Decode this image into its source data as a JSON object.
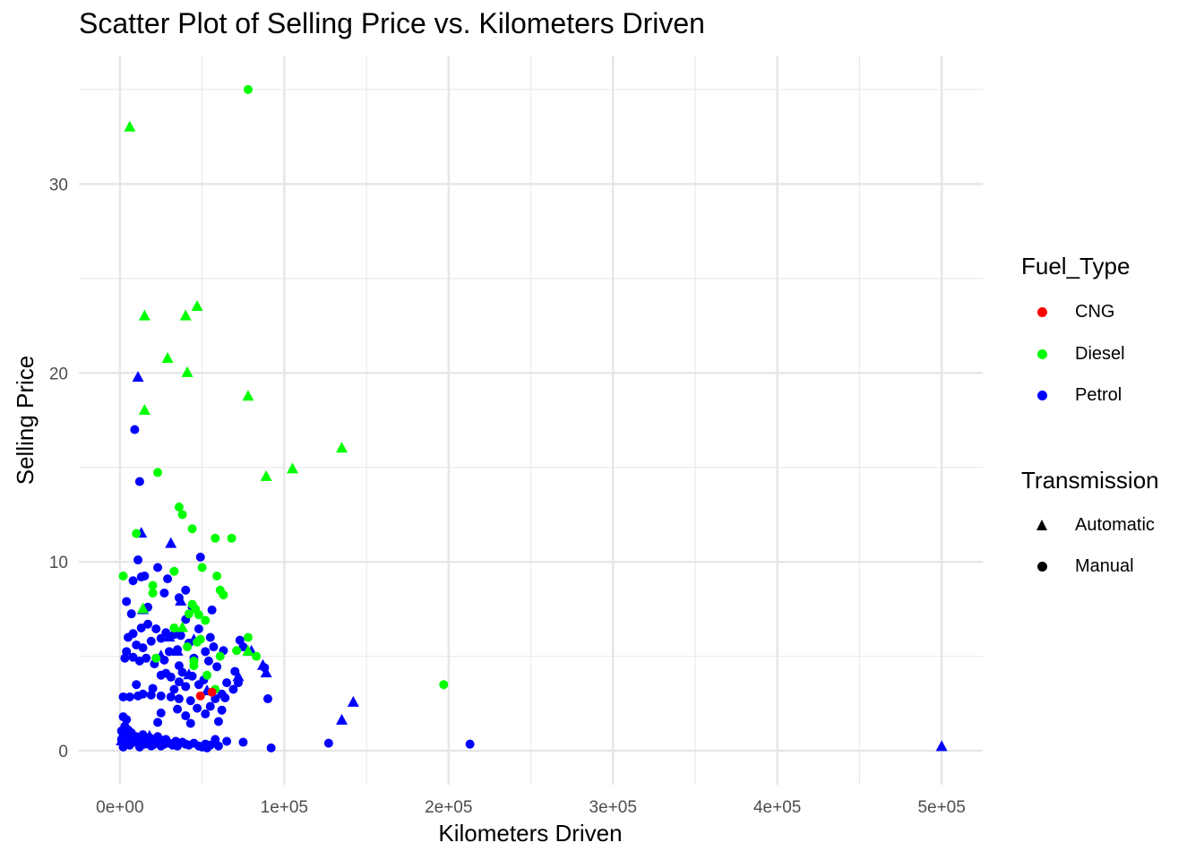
{
  "chart_data": {
    "type": "scatter",
    "title": "Scatter Plot of Selling Price vs. Kilometers Driven",
    "xlabel": "Kilometers Driven",
    "ylabel": "Selling Price",
    "xlim": [
      -25000,
      525000
    ],
    "ylim": [
      -1.8,
      36.8
    ],
    "x_ticks": [
      0,
      100000,
      200000,
      300000,
      400000,
      500000
    ],
    "x_tick_labels": [
      "0e+00",
      "1e+05",
      "2e+05",
      "3e+05",
      "4e+05",
      "5e+05"
    ],
    "y_ticks": [
      0,
      10,
      20,
      30
    ],
    "y_tick_labels": [
      "0",
      "10",
      "20",
      "30"
    ],
    "grid": true,
    "legend_position": "right",
    "colors": {
      "CNG": "#ff0000",
      "Diesel": "#00ff00",
      "Petrol": "#0000ff"
    },
    "legends": [
      {
        "title": "Fuel_Type",
        "entries": [
          {
            "label": "CNG",
            "color": "#ff0000"
          },
          {
            "label": "Diesel",
            "color": "#00ff00"
          },
          {
            "label": "Petrol",
            "color": "#0000ff"
          }
        ]
      },
      {
        "title": "Transmission",
        "entries": [
          {
            "label": "Automatic",
            "shape": "triangle"
          },
          {
            "label": "Manual",
            "shape": "circle"
          }
        ]
      }
    ],
    "series": [
      {
        "fuel": "CNG",
        "transmission": "Manual",
        "points": [
          [
            49000,
            2.9
          ],
          [
            56000,
            3.1
          ]
        ]
      },
      {
        "fuel": "Diesel",
        "transmission": "Automatic",
        "points": [
          [
            6000,
            33.0
          ],
          [
            15000,
            23.0
          ],
          [
            40000,
            23.0
          ],
          [
            47000,
            23.5
          ],
          [
            29000,
            20.75
          ],
          [
            41000,
            20.0
          ],
          [
            78000,
            18.75
          ],
          [
            15000,
            18.0
          ],
          [
            135000,
            16.0
          ],
          [
            105000,
            14.9
          ],
          [
            89000,
            14.5
          ],
          [
            14000,
            7.5
          ],
          [
            38000,
            6.5
          ],
          [
            78000,
            5.25
          ]
        ]
      },
      {
        "fuel": "Diesel",
        "transmission": "Manual",
        "points": [
          [
            78000,
            35.0
          ],
          [
            23000,
            14.73
          ],
          [
            36000,
            12.9
          ],
          [
            38000,
            12.5
          ],
          [
            44000,
            11.75
          ],
          [
            58000,
            11.25
          ],
          [
            68000,
            11.25
          ],
          [
            10000,
            11.5
          ],
          [
            33000,
            9.5
          ],
          [
            50000,
            9.7
          ],
          [
            59000,
            9.25
          ],
          [
            2000,
            9.25
          ],
          [
            20000,
            8.75
          ],
          [
            61000,
            8.5
          ],
          [
            63000,
            8.25
          ],
          [
            20000,
            8.35
          ],
          [
            44000,
            7.75
          ],
          [
            46000,
            7.5
          ],
          [
            42000,
            7.25
          ],
          [
            48000,
            7.2
          ],
          [
            52000,
            6.9
          ],
          [
            33000,
            6.5
          ],
          [
            78000,
            6.0
          ],
          [
            49000,
            5.9
          ],
          [
            47000,
            5.75
          ],
          [
            71000,
            5.3
          ],
          [
            83000,
            5.0
          ],
          [
            61000,
            5.0
          ],
          [
            45000,
            4.75
          ],
          [
            53000,
            4.0
          ],
          [
            58000,
            3.25
          ],
          [
            197000,
            3.5
          ],
          [
            22000,
            4.9
          ],
          [
            41000,
            5.5
          ],
          [
            45000,
            4.5
          ]
        ]
      },
      {
        "fuel": "Petrol",
        "transmission": "Automatic",
        "points": [
          [
            11000,
            19.75
          ],
          [
            13000,
            11.5
          ],
          [
            31000,
            10.95
          ],
          [
            14000,
            7.45
          ],
          [
            37000,
            7.9
          ],
          [
            45000,
            5.85
          ],
          [
            35000,
            5.25
          ],
          [
            80000,
            5.25
          ],
          [
            87000,
            4.5
          ],
          [
            89000,
            4.1
          ],
          [
            142000,
            2.55
          ],
          [
            135000,
            1.6
          ],
          [
            500000,
            0.2
          ],
          [
            25000,
            5.0
          ],
          [
            1000,
            0.5
          ],
          [
            42000,
            4.0
          ],
          [
            72000,
            3.9
          ],
          [
            18000,
            0.75
          ],
          [
            53000,
            3.15
          ],
          [
            30000,
            6.0
          ]
        ]
      },
      {
        "fuel": "Petrol",
        "transmission": "Manual",
        "points": [
          [
            9000,
            17.0
          ],
          [
            12000,
            14.25
          ],
          [
            11000,
            10.1
          ],
          [
            49000,
            10.25
          ],
          [
            8000,
            9.0
          ],
          [
            13000,
            9.2
          ],
          [
            15000,
            9.25
          ],
          [
            23000,
            9.7
          ],
          [
            29000,
            9.1
          ],
          [
            40000,
            8.5
          ],
          [
            27000,
            8.35
          ],
          [
            36000,
            8.1
          ],
          [
            4000,
            7.9
          ],
          [
            7000,
            7.25
          ],
          [
            17000,
            7.6
          ],
          [
            44000,
            7.6
          ],
          [
            56000,
            7.45
          ],
          [
            40000,
            6.95
          ],
          [
            13000,
            6.5
          ],
          [
            17000,
            6.7
          ],
          [
            22000,
            6.45
          ],
          [
            28000,
            6.25
          ],
          [
            33000,
            6.15
          ],
          [
            37000,
            6.1
          ],
          [
            48000,
            6.45
          ],
          [
            55000,
            6.0
          ],
          [
            5000,
            6.0
          ],
          [
            8000,
            6.2
          ],
          [
            10000,
            5.6
          ],
          [
            14000,
            5.45
          ],
          [
            19000,
            5.8
          ],
          [
            25000,
            5.95
          ],
          [
            30000,
            5.25
          ],
          [
            35000,
            5.35
          ],
          [
            42000,
            5.7
          ],
          [
            52000,
            5.25
          ],
          [
            57000,
            5.5
          ],
          [
            63000,
            5.3
          ],
          [
            73000,
            5.85
          ],
          [
            75000,
            5.5
          ],
          [
            4000,
            5.25
          ],
          [
            3000,
            4.9
          ],
          [
            8000,
            4.95
          ],
          [
            12000,
            4.75
          ],
          [
            16000,
            4.9
          ],
          [
            21000,
            4.6
          ],
          [
            27000,
            4.8
          ],
          [
            36000,
            4.5
          ],
          [
            38000,
            4.15
          ],
          [
            45000,
            4.9
          ],
          [
            54000,
            4.75
          ],
          [
            59000,
            4.45
          ],
          [
            70000,
            4.2
          ],
          [
            88000,
            4.4
          ],
          [
            31000,
            3.9
          ],
          [
            28000,
            4.1
          ],
          [
            25000,
            4.0
          ],
          [
            36000,
            3.65
          ],
          [
            44000,
            3.95
          ],
          [
            51000,
            3.75
          ],
          [
            65000,
            3.6
          ],
          [
            72000,
            3.6
          ],
          [
            10000,
            3.5
          ],
          [
            20000,
            3.3
          ],
          [
            33000,
            3.25
          ],
          [
            40000,
            3.4
          ],
          [
            48000,
            3.5
          ],
          [
            62000,
            3.0
          ],
          [
            2000,
            2.85
          ],
          [
            6000,
            2.85
          ],
          [
            11000,
            2.9
          ],
          [
            14000,
            3.0
          ],
          [
            19000,
            2.95
          ],
          [
            25000,
            2.9
          ],
          [
            31000,
            2.85
          ],
          [
            36000,
            2.75
          ],
          [
            43000,
            2.65
          ],
          [
            58000,
            2.75
          ],
          [
            64000,
            2.8
          ],
          [
            69000,
            3.25
          ],
          [
            90000,
            2.75
          ],
          [
            47000,
            2.25
          ],
          [
            55000,
            2.35
          ],
          [
            62000,
            2.15
          ],
          [
            25000,
            2.0
          ],
          [
            35000,
            2.2
          ],
          [
            40000,
            1.85
          ],
          [
            52000,
            1.95
          ],
          [
            60000,
            1.55
          ],
          [
            23000,
            1.5
          ],
          [
            43000,
            1.45
          ],
          [
            2000,
            1.8
          ],
          [
            4000,
            1.65
          ],
          [
            3000,
            1.3
          ],
          [
            5000,
            1.1
          ],
          [
            1000,
            1.05
          ],
          [
            7000,
            0.95
          ],
          [
            2000,
            0.85
          ],
          [
            3000,
            0.75
          ],
          [
            4000,
            0.9
          ],
          [
            5000,
            0.65
          ],
          [
            6000,
            0.55
          ],
          [
            1000,
            0.6
          ],
          [
            8000,
            0.45
          ],
          [
            9000,
            0.55
          ],
          [
            10000,
            0.75
          ],
          [
            11000,
            0.4
          ],
          [
            12000,
            0.6
          ],
          [
            13000,
            0.45
          ],
          [
            14000,
            0.85
          ],
          [
            15000,
            0.35
          ],
          [
            16000,
            0.6
          ],
          [
            17000,
            0.5
          ],
          [
            18000,
            0.7
          ],
          [
            20000,
            0.3
          ],
          [
            21000,
            0.6
          ],
          [
            22000,
            0.4
          ],
          [
            23000,
            0.75
          ],
          [
            24000,
            0.45
          ],
          [
            25000,
            0.25
          ],
          [
            26000,
            0.55
          ],
          [
            27000,
            0.35
          ],
          [
            28000,
            0.6
          ],
          [
            30000,
            0.4
          ],
          [
            32000,
            0.3
          ],
          [
            34000,
            0.5
          ],
          [
            35000,
            0.25
          ],
          [
            38000,
            0.45
          ],
          [
            40000,
            0.35
          ],
          [
            42000,
            0.3
          ],
          [
            45000,
            0.4
          ],
          [
            48000,
            0.25
          ],
          [
            50000,
            0.2
          ],
          [
            52000,
            0.35
          ],
          [
            55000,
            0.3
          ],
          [
            58000,
            0.6
          ],
          [
            60000,
            0.25
          ],
          [
            65000,
            0.5
          ],
          [
            75000,
            0.45
          ],
          [
            92000,
            0.15
          ],
          [
            127000,
            0.4
          ],
          [
            213000,
            0.35
          ],
          [
            12000,
            0.2
          ],
          [
            19000,
            0.25
          ],
          [
            33000,
            0.35
          ],
          [
            53000,
            0.15
          ],
          [
            2000,
            0.2
          ],
          [
            6000,
            0.3
          ]
        ]
      }
    ]
  }
}
